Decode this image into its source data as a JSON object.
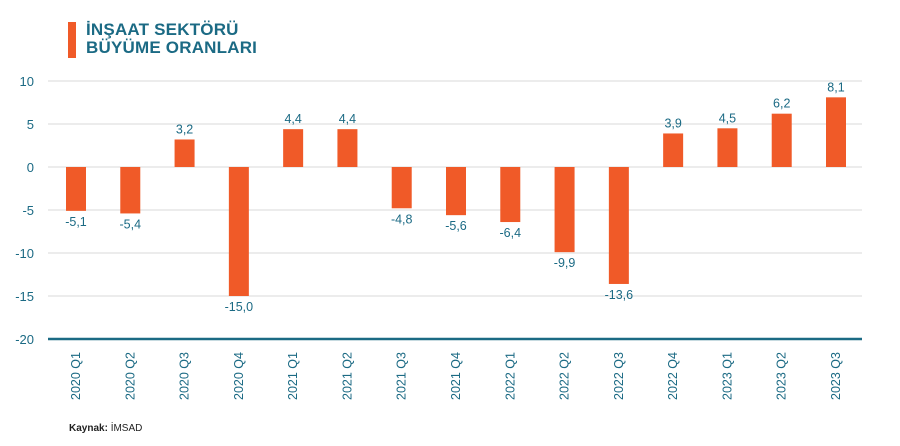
{
  "chart_data": {
    "type": "bar",
    "title": [
      "İNŞAAT SEKTÖRÜ",
      "BÜYÜME ORANLARI"
    ],
    "xlabel": "",
    "ylabel": "",
    "categories": [
      "2020 Q1",
      "2020 Q2",
      "2020 Q3",
      "2020 Q4",
      "2021 Q1",
      "2021 Q2",
      "2021 Q3",
      "2021 Q4",
      "2022 Q1",
      "2022 Q2",
      "2022 Q3",
      "2022 Q4",
      "2023 Q1",
      "2023 Q2",
      "2023 Q3"
    ],
    "values": [
      -5.1,
      -5.4,
      3.2,
      -15.0,
      4.4,
      4.4,
      -4.8,
      -5.6,
      -6.4,
      -9.9,
      -13.6,
      3.9,
      4.5,
      6.2,
      8.1
    ],
    "value_labels": [
      "-5,1",
      "-5,4",
      "3,2",
      "-15,0",
      "4,4",
      "4,4",
      "-4,8",
      "-5,6",
      "-6,4",
      "-9,9",
      "-13,6",
      "3,9",
      "4,5",
      "6,2",
      "8,1"
    ],
    "ylim": [
      -20,
      10
    ],
    "yticks": [
      10,
      5,
      0,
      -5,
      -10,
      -15,
      -20
    ],
    "grid": true,
    "legend": "none",
    "colors": {
      "bar": "#f05a28",
      "text": "#1b6a84",
      "grid": "#e6e6e6",
      "axis": "#1b6a84"
    }
  },
  "source": {
    "label": "Kaynak:",
    "value": "İMSAD"
  }
}
